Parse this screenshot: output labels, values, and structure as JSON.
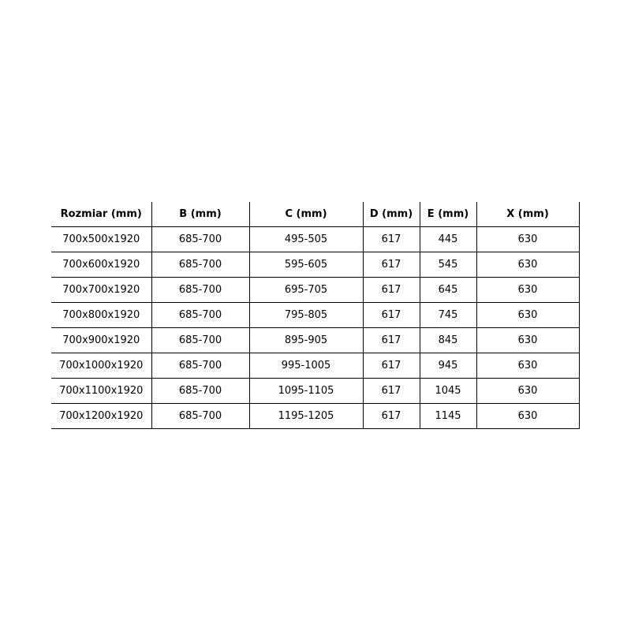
{
  "table": {
    "headers": [
      "Rozmiar (mm)",
      "B (mm)",
      "C (mm)",
      "D (mm)",
      "E (mm)",
      "X (mm)"
    ],
    "rows": [
      [
        "700x500x1920",
        "685-700",
        "495-505",
        "617",
        "445",
        "630"
      ],
      [
        "700x600x1920",
        "685-700",
        "595-605",
        "617",
        "545",
        "630"
      ],
      [
        "700x700x1920",
        "685-700",
        "695-705",
        "617",
        "645",
        "630"
      ],
      [
        "700x800x1920",
        "685-700",
        "795-805",
        "617",
        "745",
        "630"
      ],
      [
        "700x900x1920",
        "685-700",
        "895-905",
        "617",
        "845",
        "630"
      ],
      [
        "700x1000x1920",
        "685-700",
        "995-1005",
        "617",
        "945",
        "630"
      ],
      [
        "700x1100x1920",
        "685-700",
        "1095-1105",
        "617",
        "1045",
        "630"
      ],
      [
        "700x1200x1920",
        "685-700",
        "1195-1205",
        "617",
        "1145",
        "630"
      ]
    ]
  }
}
